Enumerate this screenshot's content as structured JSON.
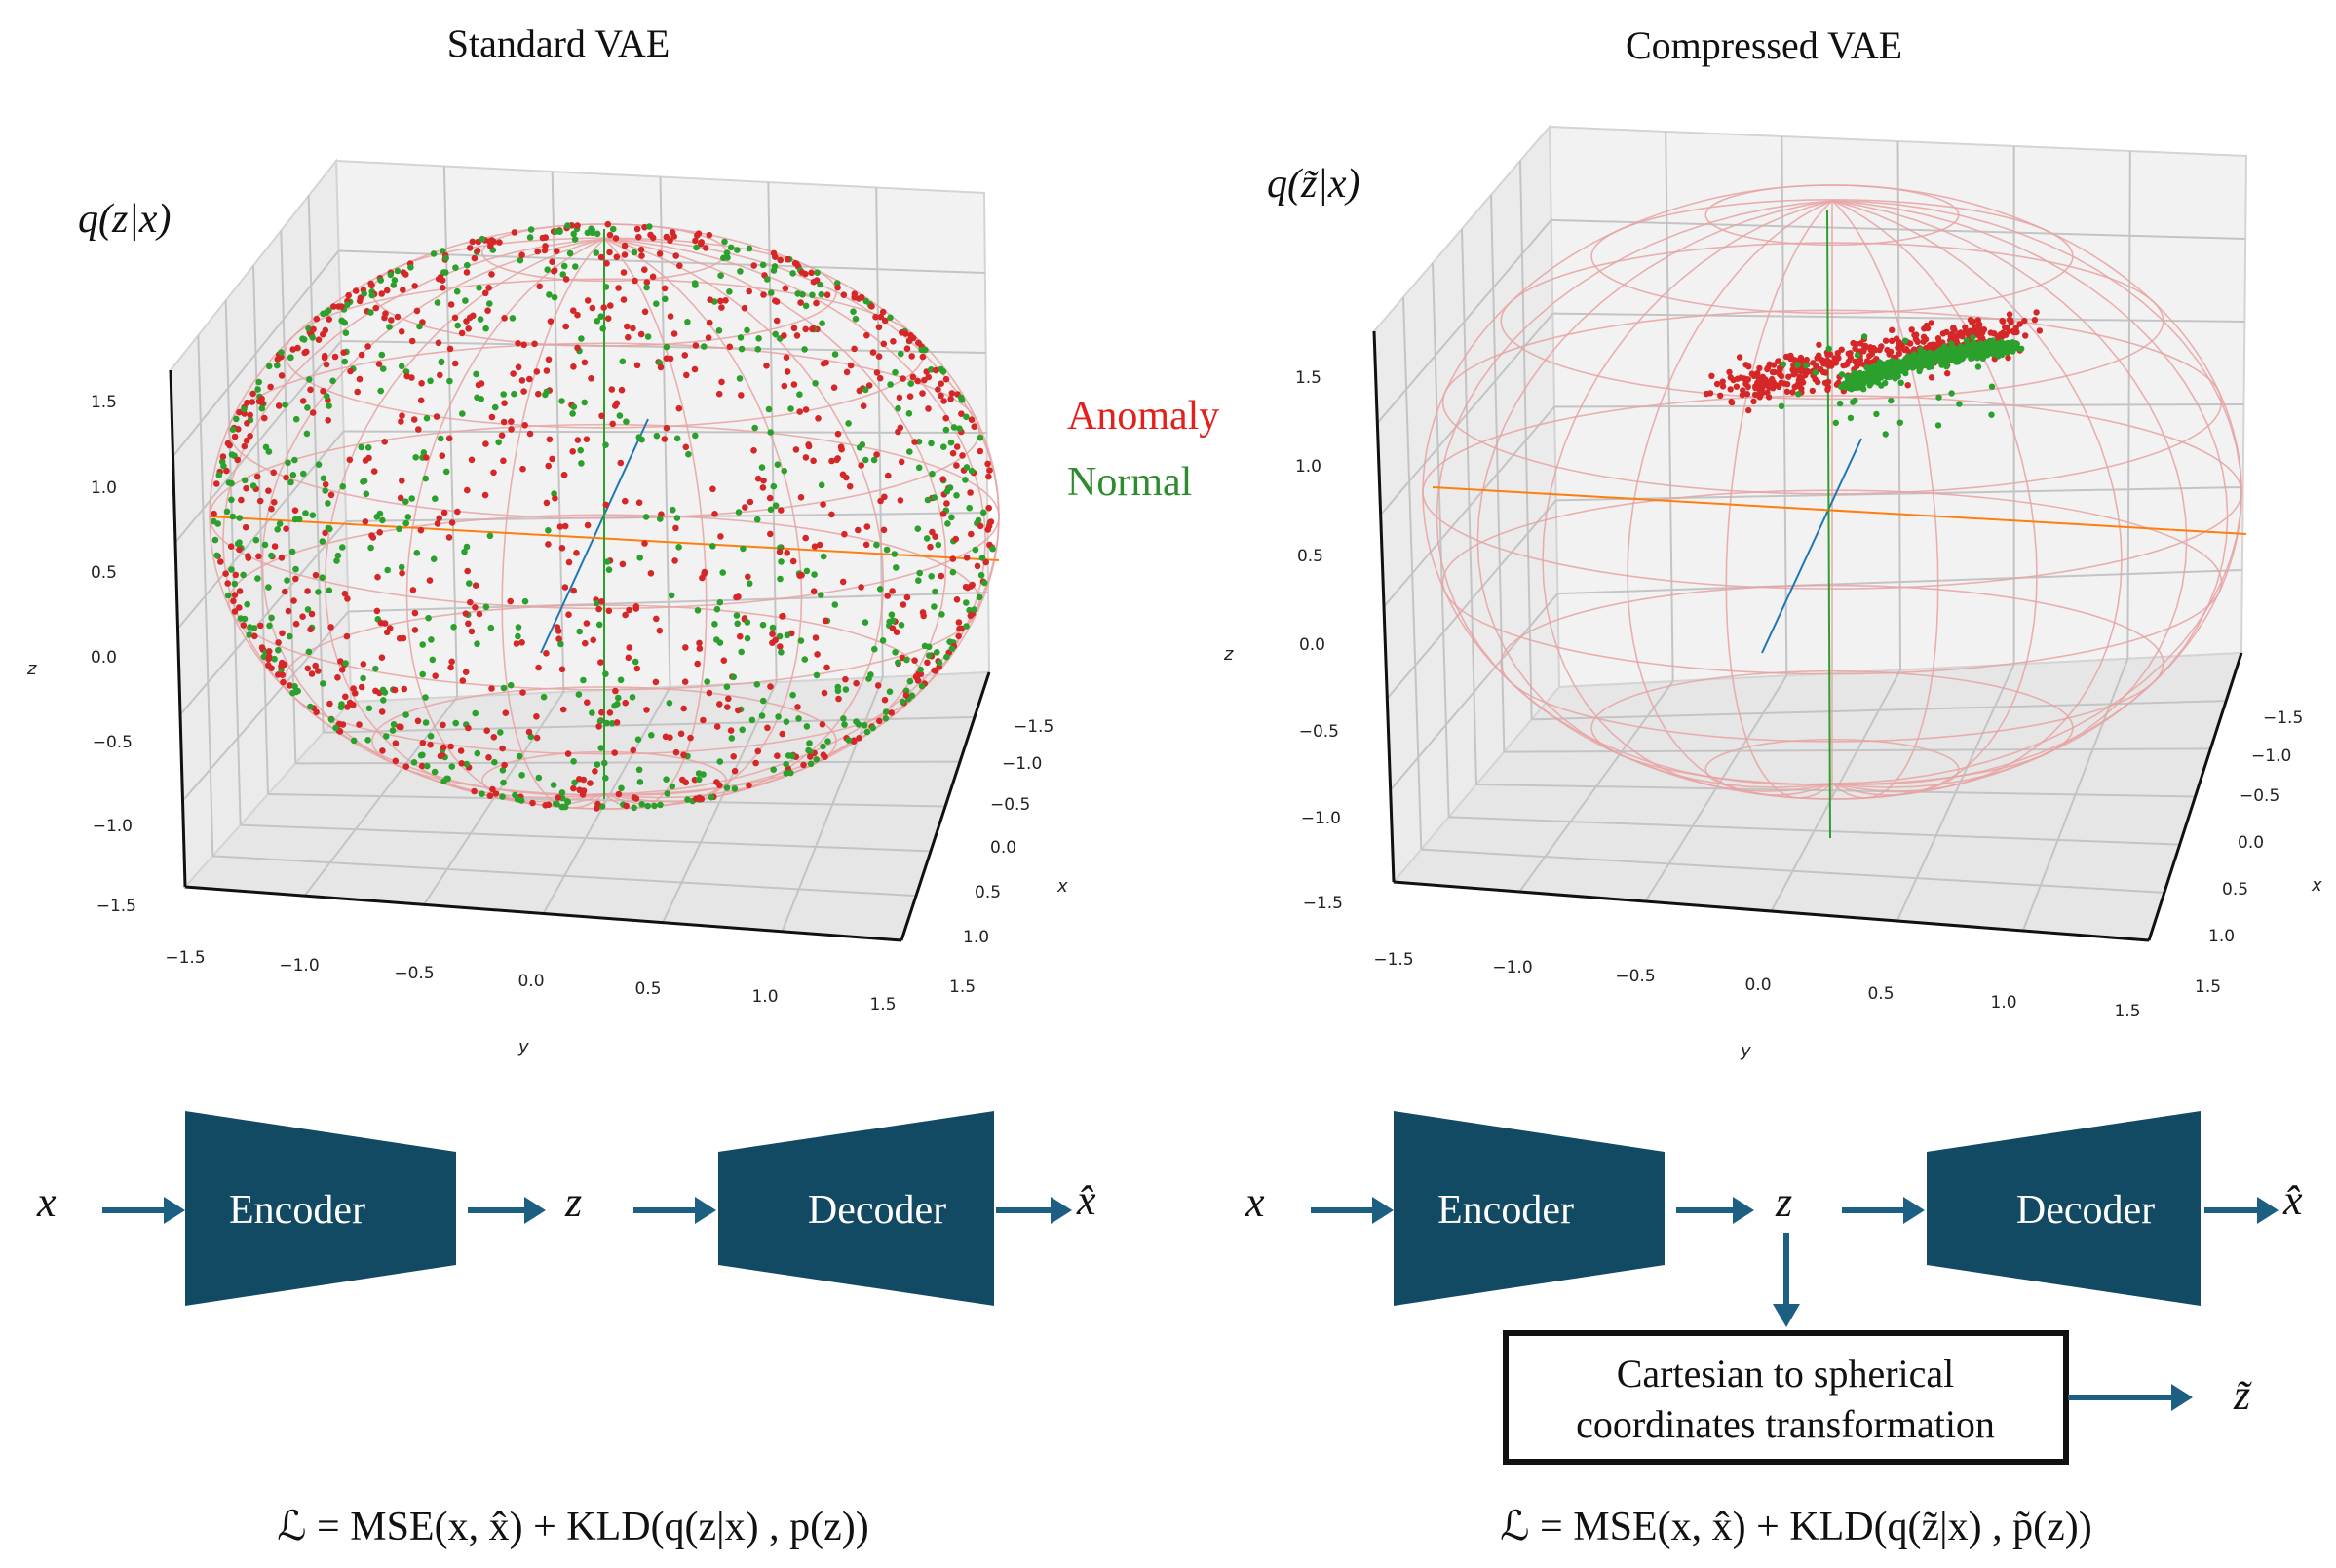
{
  "figure": {
    "left_panel": {
      "title": "Standard VAE",
      "dist_label": "q(z|x)",
      "axis_labels": {
        "x": "x",
        "y": "y",
        "z": "z"
      },
      "z_ticks": [
        "1.5",
        "1.0",
        "0.5",
        "0.0",
        "−0.5",
        "−1.0",
        "−1.5"
      ],
      "y_ticks": [
        "−1.5",
        "−1.0",
        "−0.5",
        "0.0",
        "0.5",
        "1.0",
        "1.5"
      ],
      "x_ticks": [
        "−1.5",
        "−1.0",
        "−0.5",
        "0.0",
        "0.5",
        "1.0",
        "1.5"
      ]
    },
    "right_panel": {
      "title": "Compressed VAE",
      "dist_label": "q(z̃|x)",
      "axis_labels": {
        "x": "x",
        "y": "y",
        "z": "z"
      },
      "z_ticks": [
        "1.5",
        "1.0",
        "0.5",
        "0.0",
        "−0.5",
        "−1.0",
        "−1.5"
      ],
      "y_ticks": [
        "−1.5",
        "−1.0",
        "−0.5",
        "0.0",
        "0.5",
        "1.0",
        "1.5"
      ],
      "x_ticks": [
        "−1.5",
        "−1.0",
        "−0.5",
        "0.0",
        "0.5",
        "1.0",
        "1.5"
      ]
    },
    "legend": {
      "anomaly": "Anomaly",
      "normal": "Normal",
      "anomaly_color": "#d62728",
      "normal_color": "#2ca02c"
    },
    "colors": {
      "block": "#134a63",
      "arrow": "#1d5f82",
      "wire": "#e8a3a3",
      "axis_x": "#1f77b4",
      "axis_y": "#ff7f0e",
      "axis_z": "#2ca02c"
    },
    "pipeline_left": {
      "input": "x",
      "encoder": "Encoder",
      "latent": "z",
      "decoder": "Decoder",
      "output": "x̂"
    },
    "pipeline_right": {
      "input": "x",
      "encoder": "Encoder",
      "latent": "z",
      "decoder": "Decoder",
      "output": "x̂",
      "transform_line1": "Cartesian to spherical",
      "transform_line2": "coordinates transformation",
      "transformed": "z̃"
    },
    "loss_left": "ℒ = MSE(x, x̂) + KLD(q(z|x) , p(z))",
    "loss_right": "ℒ = MSE(x, x̂) + KLD(q(z̃|x) , p̃(z))"
  }
}
